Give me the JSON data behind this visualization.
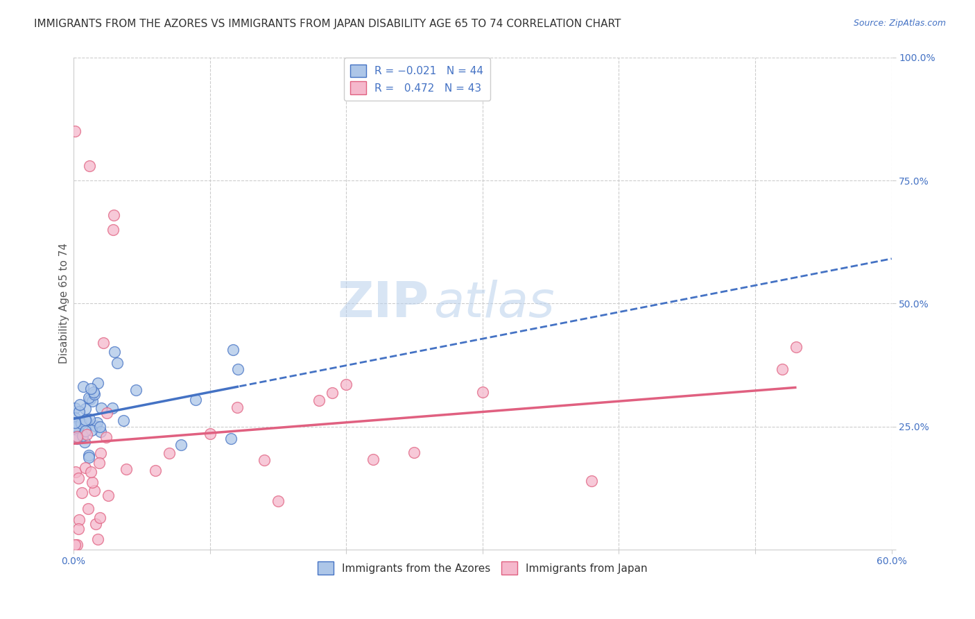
{
  "title": "IMMIGRANTS FROM THE AZORES VS IMMIGRANTS FROM JAPAN DISABILITY AGE 65 TO 74 CORRELATION CHART",
  "source": "Source: ZipAtlas.com",
  "ylabel": "Disability Age 65 to 74",
  "watermark_top": "ZIP",
  "watermark_bot": "atlas",
  "xlim": [
    0.0,
    0.6
  ],
  "ylim": [
    0.0,
    1.0
  ],
  "xticks": [
    0.0,
    0.1,
    0.2,
    0.3,
    0.4,
    0.5,
    0.6
  ],
  "xticklabels": [
    "0.0%",
    "",
    "",
    "",
    "",
    "",
    "60.0%"
  ],
  "yticks": [
    0.0,
    0.25,
    0.5,
    0.75,
    1.0
  ],
  "yticklabels": [
    "",
    "25.0%",
    "50.0%",
    "75.0%",
    "100.0%"
  ],
  "series": [
    {
      "label": "Immigrants from the Azores",
      "R": -0.021,
      "N": 44,
      "color": "#adc6e8",
      "edge_color": "#4472c4",
      "line_color": "#4472c4"
    },
    {
      "label": "Immigrants from Japan",
      "R": 0.472,
      "N": 43,
      "color": "#f5b8cc",
      "edge_color": "#e06080",
      "line_color": "#e06080"
    }
  ],
  "background_color": "#ffffff",
  "grid_color": "#cccccc",
  "title_fontsize": 11,
  "axis_label_fontsize": 11,
  "tick_fontsize": 10,
  "legend_fontsize": 11,
  "watermark_color": "#b8d0ec",
  "watermark_fontsize": 52
}
